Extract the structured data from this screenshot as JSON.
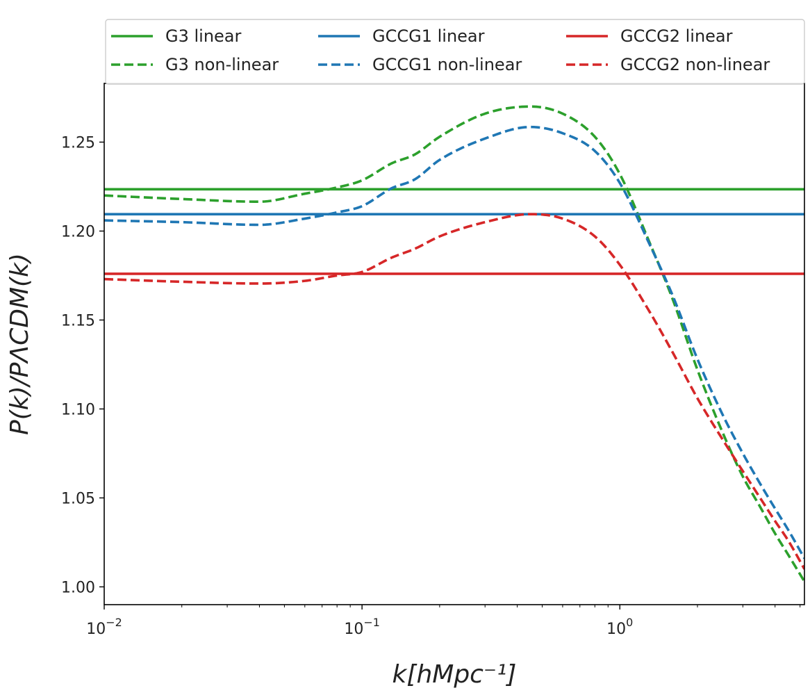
{
  "chart_data": {
    "type": "line",
    "title": "",
    "xlabel": "k[hMpc⁻¹]",
    "ylabel": "P(k)/PΛCDM(k)",
    "xscale": "log",
    "xlim": [
      0.01,
      5.2
    ],
    "ylim": [
      0.99,
      1.283
    ],
    "x_ticks": [
      {
        "value": 0.01,
        "base": "10",
        "exp": "−2"
      },
      {
        "value": 0.1,
        "base": "10",
        "exp": "−1"
      },
      {
        "value": 1,
        "base": "10",
        "exp": "0"
      }
    ],
    "y_ticks": [
      {
        "value": 1.0,
        "label": "1.00"
      },
      {
        "value": 1.05,
        "label": "1.05"
      },
      {
        "value": 1.1,
        "label": "1.10"
      },
      {
        "value": 1.15,
        "label": "1.15"
      },
      {
        "value": 1.2,
        "label": "1.20"
      },
      {
        "value": 1.25,
        "label": "1.25"
      }
    ],
    "legend_position": "top",
    "series": [
      {
        "name": "G3 linear",
        "color": "#2ca02c",
        "style": "solid",
        "x": [
          0.01,
          5.2
        ],
        "y": [
          1.2235,
          1.2235
        ]
      },
      {
        "name": "G3 non-linear",
        "color": "#2ca02c",
        "style": "dashed",
        "x": [
          0.01,
          0.02,
          0.04,
          0.06,
          0.08,
          0.1,
          0.13,
          0.16,
          0.2,
          0.3,
          0.45,
          0.6,
          0.8,
          1.0,
          1.3,
          1.6,
          2.0,
          2.5,
          3.0,
          3.5,
          4.0,
          4.5,
          5.2
        ],
        "y": [
          1.22,
          1.218,
          1.2165,
          1.221,
          1.2245,
          1.2285,
          1.238,
          1.243,
          1.253,
          1.266,
          1.27,
          1.266,
          1.253,
          1.232,
          1.194,
          1.162,
          1.122,
          1.087,
          1.062,
          1.045,
          1.03,
          1.018,
          1.003
        ]
      },
      {
        "name": "GCCG1 linear",
        "color": "#1f77b4",
        "style": "solid",
        "x": [
          0.01,
          5.2
        ],
        "y": [
          1.2095,
          1.2095
        ]
      },
      {
        "name": "GCCG1 non-linear",
        "color": "#1f77b4",
        "style": "dashed",
        "x": [
          0.01,
          0.02,
          0.04,
          0.06,
          0.08,
          0.1,
          0.13,
          0.16,
          0.2,
          0.3,
          0.45,
          0.6,
          0.8,
          1.0,
          1.3,
          1.6,
          2.0,
          2.5,
          3.0,
          3.5,
          4.0,
          4.5,
          5.2
        ],
        "y": [
          1.206,
          1.205,
          1.2035,
          1.207,
          1.2105,
          1.214,
          1.224,
          1.229,
          1.24,
          1.252,
          1.2585,
          1.255,
          1.245,
          1.227,
          1.193,
          1.164,
          1.128,
          1.097,
          1.075,
          1.058,
          1.044,
          1.032,
          1.016
        ]
      },
      {
        "name": "GCCG2 linear",
        "color": "#d62728",
        "style": "solid",
        "x": [
          0.01,
          5.2
        ],
        "y": [
          1.176,
          1.176
        ]
      },
      {
        "name": "GCCG2 non-linear",
        "color": "#d62728",
        "style": "dashed",
        "x": [
          0.01,
          0.02,
          0.04,
          0.06,
          0.08,
          0.1,
          0.13,
          0.16,
          0.2,
          0.3,
          0.45,
          0.6,
          0.8,
          1.0,
          1.3,
          1.6,
          2.0,
          2.5,
          3.0,
          3.5,
          4.0,
          4.5,
          5.2
        ],
        "y": [
          1.173,
          1.1715,
          1.1705,
          1.172,
          1.175,
          1.177,
          1.185,
          1.19,
          1.197,
          1.205,
          1.2095,
          1.207,
          1.197,
          1.181,
          1.155,
          1.132,
          1.106,
          1.083,
          1.065,
          1.05,
          1.037,
          1.026,
          1.01
        ]
      }
    ]
  }
}
